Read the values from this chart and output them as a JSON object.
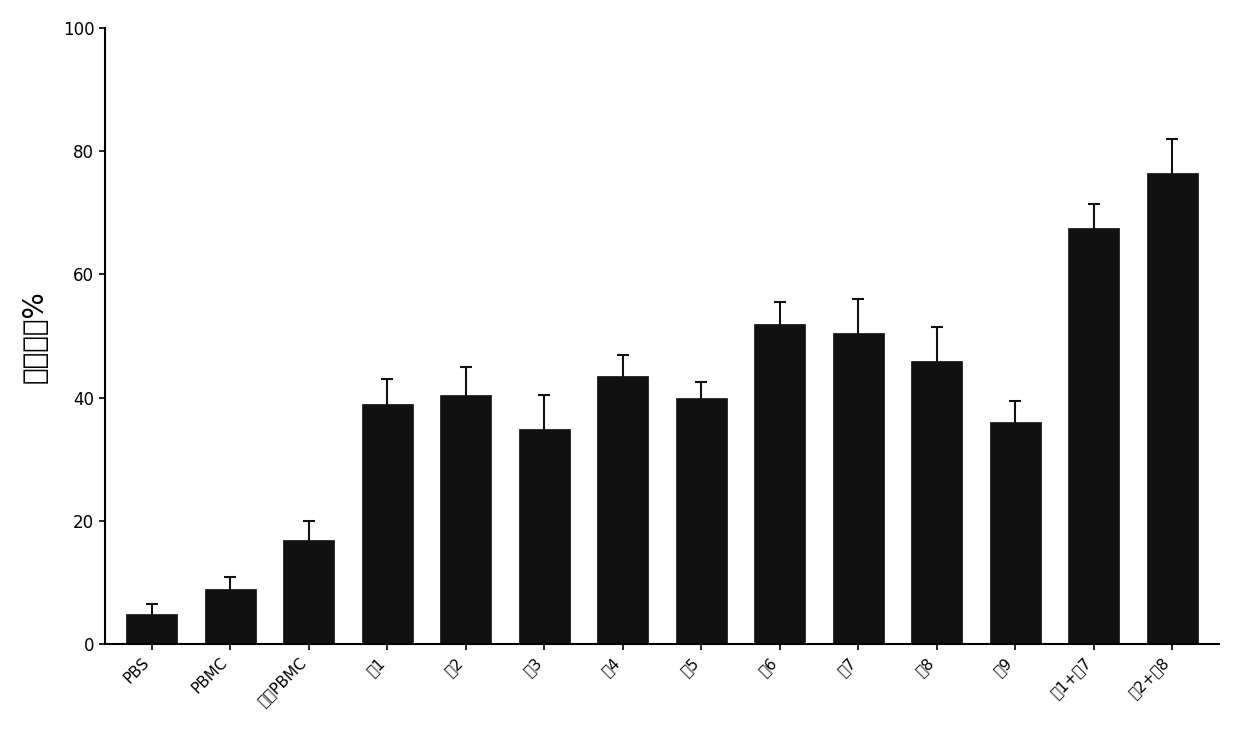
{
  "categories": [
    "PBS",
    "PBMC",
    "依照PBMC",
    "新1",
    "新2",
    "新3",
    "新4",
    "新5",
    "新6",
    "新7",
    "新8",
    "新9",
    "新1+新7",
    "新2+新8"
  ],
  "values": [
    5.0,
    9.0,
    17.0,
    39.0,
    40.5,
    35.0,
    43.5,
    40.0,
    52.0,
    50.5,
    46.0,
    36.0,
    67.5,
    76.5
  ],
  "errors": [
    1.5,
    2.0,
    3.0,
    4.0,
    4.5,
    5.5,
    3.5,
    2.5,
    3.5,
    5.5,
    5.5,
    3.5,
    4.0,
    5.5
  ],
  "bar_color": "#111111",
  "edge_color": "#111111",
  "ylabel": "杀伤活性%",
  "ylim": [
    0,
    100
  ],
  "yticks": [
    0,
    20,
    40,
    60,
    80,
    100
  ],
  "background_color": "#ffffff",
  "bar_width": 0.65,
  "ylabel_fontsize": 20,
  "tick_fontsize": 12,
  "xtick_fontsize": 11
}
